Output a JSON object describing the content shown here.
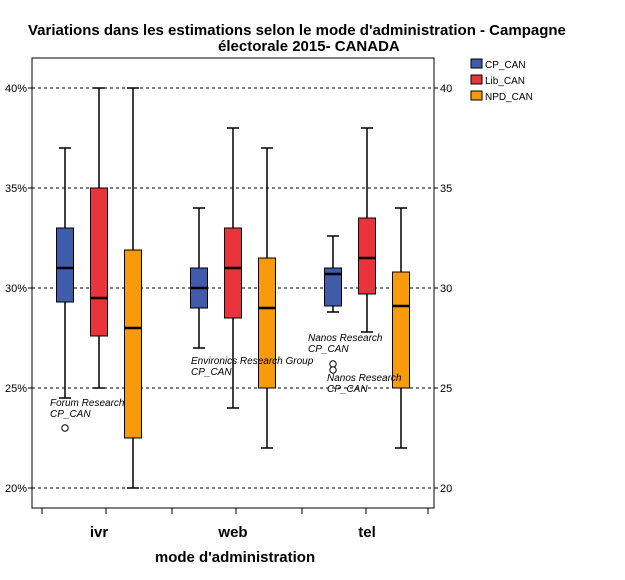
{
  "chart_data": {
    "type": "boxplot",
    "title_lines": [
      "Variations dans les estimations selon le mode d'administration - Campagne",
      "électorale 2015- CANADA"
    ],
    "xlabel": "mode d'administration",
    "ylabel": "",
    "categories": [
      "ivr",
      "web",
      "tel"
    ],
    "ylim": [
      19,
      41.5
    ],
    "yticks": [
      20,
      25,
      30,
      35,
      40
    ],
    "ytick_labels_left": [
      "20%",
      "25%",
      "30%",
      "35%",
      "40%"
    ],
    "ytick_labels_right": [
      "20",
      "25",
      "30",
      "35",
      "40"
    ],
    "grid": "horizontal dotted at major ticks",
    "legend_position": "top-right outside",
    "series": [
      {
        "name": "CP_CAN",
        "color": "#3F5BAA",
        "boxes": [
          {
            "category": "ivr",
            "whisker_low": 24.5,
            "q1": 29.3,
            "median": 31.0,
            "q3": 33.0,
            "whisker_high": 37.0
          },
          {
            "category": "web",
            "whisker_low": 27.0,
            "q1": 29.0,
            "median": 30.0,
            "q3": 31.0,
            "whisker_high": 34.0
          },
          {
            "category": "tel",
            "whisker_low": 28.8,
            "q1": 29.1,
            "median": 30.7,
            "q3": 31.0,
            "whisker_high": 32.6
          }
        ]
      },
      {
        "name": "Lib_CAN",
        "color": "#E8343A",
        "boxes": [
          {
            "category": "ivr",
            "whisker_low": 25.0,
            "q1": 27.6,
            "median": 29.5,
            "q3": 35.0,
            "whisker_high": 40.0
          },
          {
            "category": "web",
            "whisker_low": 24.0,
            "q1": 28.5,
            "median": 31.0,
            "q3": 33.0,
            "whisker_high": 38.0
          },
          {
            "category": "tel",
            "whisker_low": 27.8,
            "q1": 29.7,
            "median": 31.5,
            "q3": 33.5,
            "whisker_high": 38.0
          }
        ]
      },
      {
        "name": "NPD_CAN",
        "color": "#F79A0C",
        "boxes": [
          {
            "category": "ivr",
            "whisker_low": 20.0,
            "q1": 22.5,
            "median": 28.0,
            "q3": 31.9,
            "whisker_high": 40.0
          },
          {
            "category": "web",
            "whisker_low": 22.0,
            "q1": 25.0,
            "median": 29.0,
            "q3": 31.5,
            "whisker_high": 37.0
          },
          {
            "category": "tel",
            "whisker_low": 22.0,
            "q1": 25.0,
            "median": 29.1,
            "q3": 30.8,
            "whisker_high": 34.0
          }
        ]
      }
    ],
    "outliers": [
      {
        "series": "CP_CAN",
        "category": "ivr",
        "value": 23.0,
        "label_lines": [
          "Forum Research",
          "CP_CAN"
        ]
      },
      {
        "series": "CP_CAN",
        "category": "tel",
        "value": 26.2,
        "label_lines": [
          "Nanos Research",
          "CP_CAN"
        ]
      },
      {
        "series": "CP_CAN",
        "category": "tel",
        "value": 25.9,
        "label_lines": [
          "Nanos Research",
          "CP_CAN"
        ]
      }
    ],
    "annotations": [
      {
        "category": "web",
        "series": "CP_CAN",
        "at_value": 26.3,
        "label_lines": [
          "Environics Research Group",
          "CP_CAN"
        ]
      }
    ]
  }
}
